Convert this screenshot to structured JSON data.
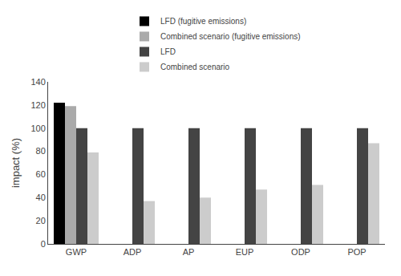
{
  "chart_data": {
    "type": "bar",
    "categories": [
      "GWP",
      "ADP",
      "AP",
      "EUP",
      "ODP",
      "POP"
    ],
    "series": [
      {
        "name": "LFD (fugitive emissions)",
        "color": "#000000",
        "values": [
          122,
          null,
          null,
          null,
          null,
          null
        ]
      },
      {
        "name": "Combined scenario (fugitive emissions)",
        "color": "#aaaaaa",
        "values": [
          119,
          null,
          null,
          null,
          null,
          null
        ]
      },
      {
        "name": "LFD",
        "color": "#444444",
        "values": [
          100,
          100,
          100,
          100,
          100,
          100
        ]
      },
      {
        "name": "Combined scenario",
        "color": "#cccccc",
        "values": [
          79,
          37,
          40,
          47,
          51,
          87
        ]
      }
    ],
    "ylabel": "impact (%)",
    "ylim": [
      0,
      140
    ],
    "yticks": [
      0,
      20,
      40,
      60,
      80,
      100,
      120,
      140
    ],
    "grid": false,
    "legend": "top"
  }
}
